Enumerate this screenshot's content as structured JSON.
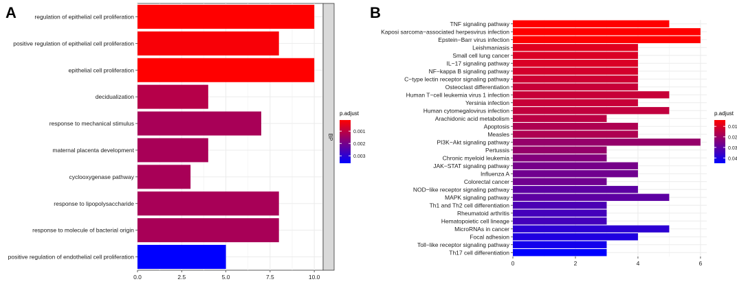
{
  "chart_data": [
    {
      "type": "bar",
      "orientation": "horizontal",
      "panel_label": "A",
      "categories": [
        "regulation of epithelial cell proliferation",
        "positive regulation of epithelial cell proliferation",
        "epithelial cell proliferation",
        "decidualization",
        "response to mechanical stimulus",
        "maternal placenta development",
        "cyclooxygenase pathway",
        "response to lipopolysaccharide",
        "response to molecule of bacterial origin",
        "positive regulation of endothelial cell proliferation"
      ],
      "values": [
        10,
        8,
        10,
        4,
        7,
        4,
        3,
        8,
        8,
        5
      ],
      "p_adjust": [
        0.0001,
        0.0002,
        0.0001,
        0.0011,
        0.0013,
        0.0013,
        0.0013,
        0.0013,
        0.0013,
        0.0036
      ],
      "xlim": [
        0,
        10.5
      ],
      "xticks": [
        "0.0",
        "2.5",
        "5.0",
        "7.5",
        "10.0"
      ],
      "xtick_values": [
        0,
        2.5,
        5,
        7.5,
        10
      ],
      "facet_label": "BP",
      "legend": {
        "title": "p.adjust",
        "labels": [
          "0.001",
          "0.002",
          "0.003"
        ],
        "label_values": [
          0.001,
          0.002,
          0.003
        ],
        "range": [
          0.0001,
          0.0036
        ]
      },
      "colors": {
        "low": "#ff0000",
        "high": "#0000ff"
      }
    },
    {
      "type": "bar",
      "orientation": "horizontal",
      "panel_label": "B",
      "categories": [
        "TNF signaling pathway",
        "Kaposi sarcoma−associated herpesvirus infection",
        "Epstein−Barr virus infection",
        "Leishmaniasis",
        "Small cell lung cancer",
        "IL−17 signaling pathway",
        "NF−kappa B signaling pathway",
        "C−type lectin receptor signaling pathway",
        "Osteoclast differentiation",
        "Human T−cell leukemia virus 1 infection",
        "Yersinia infection",
        "Human cytomegalovirus infection",
        "Arachidonic acid metabolism",
        "Apoptosis",
        "Measles",
        "PI3K−Akt signaling pathway",
        "Pertussis",
        "Chronic myeloid leukemia",
        "JAK−STAT signaling pathway",
        "Influenza A",
        "Colorectal cancer",
        "NOD−like receptor signaling pathway",
        "MAPK signaling pathway",
        "Th1 and Th2 cell differentiation",
        "Rheumatoid arthritis",
        "Hematopoietic cell lineage",
        "MicroRNAs in cancer",
        "Focal adhesion",
        "Toll−like receptor signaling pathway",
        "Th17 cell differentiation"
      ],
      "values": [
        5,
        6,
        6,
        4,
        4,
        4,
        4,
        4,
        4,
        5,
        4,
        5,
        3,
        4,
        4,
        6,
        3,
        3,
        4,
        4,
        3,
        4,
        5,
        3,
        3,
        3,
        5,
        4,
        3,
        3
      ],
      "p_adjust": [
        0.004,
        0.004,
        0.004,
        0.009,
        0.01,
        0.01,
        0.011,
        0.012,
        0.013,
        0.013,
        0.013,
        0.014,
        0.015,
        0.017,
        0.017,
        0.021,
        0.021,
        0.024,
        0.026,
        0.027,
        0.027,
        0.03,
        0.03,
        0.033,
        0.034,
        0.034,
        0.038,
        0.04,
        0.042,
        0.045
      ],
      "xlim": [
        0,
        6.2
      ],
      "xticks": [
        "0",
        "2",
        "4",
        "6"
      ],
      "xtick_values": [
        0,
        2,
        4,
        6
      ],
      "legend": {
        "title": "p.adjust",
        "labels": [
          "0.01",
          "0.02",
          "0.03",
          "0.04"
        ],
        "label_values": [
          0.01,
          0.02,
          0.03,
          0.04
        ],
        "range": [
          0.004,
          0.045
        ]
      },
      "colors": {
        "low": "#ff0000",
        "high": "#0000ff"
      }
    }
  ]
}
